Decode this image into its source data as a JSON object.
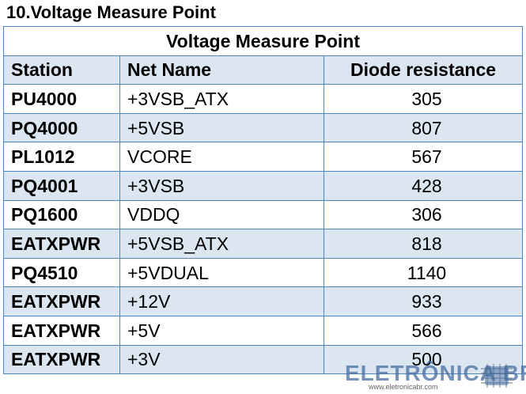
{
  "heading": "10.Voltage Measure Point",
  "table": {
    "title": "Voltage Measure Point",
    "columns": [
      "Station",
      "Net Name",
      "Diode resistance"
    ],
    "rows": [
      {
        "station": "PU4000",
        "net": "+3VSB_ATX",
        "resistance": "305"
      },
      {
        "station": "PQ4000",
        "net": "+5VSB",
        "resistance": "807"
      },
      {
        "station": "PL1012",
        "net": "VCORE",
        "resistance": "567"
      },
      {
        "station": "PQ4001",
        "net": "+3VSB",
        "resistance": "428"
      },
      {
        "station": "PQ1600",
        "net": "VDDQ",
        "resistance": "306"
      },
      {
        "station": "EATXPWR",
        "net": "+5VSB_ATX",
        "resistance": "818"
      },
      {
        "station": "PQ4510",
        "net": "+5VDUAL",
        "resistance": "1140"
      },
      {
        "station": "EATXPWR",
        "net": "+12V",
        "resistance": "933"
      },
      {
        "station": "EATXPWR",
        "net": "+5V",
        "resistance": "566"
      },
      {
        "station": "EATXPWR",
        "net": "+3V",
        "resistance": "500"
      }
    ]
  },
  "watermark": {
    "brand": "ELETRÔNICA BR",
    "url": "www.eletronicabr.com"
  },
  "colors": {
    "border": "#4a86c5",
    "band": "#dce6f1"
  }
}
